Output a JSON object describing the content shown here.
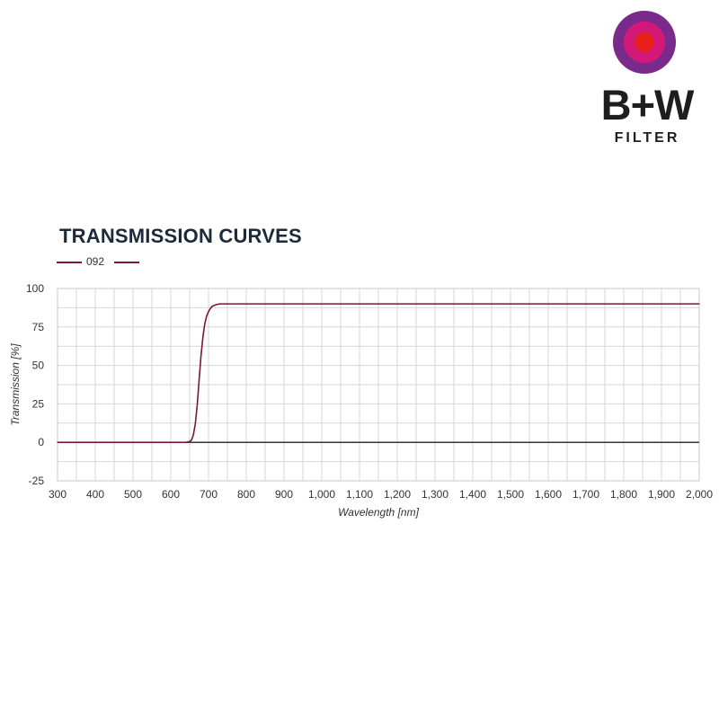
{
  "brand": {
    "name": "B+W",
    "subtitle": "FILTER",
    "colors": {
      "outer": "#7a2a8a",
      "middle": "#d4187a",
      "inner": "#e8221a"
    }
  },
  "chart_data": {
    "type": "line",
    "title": "TRANSMISSION CURVES",
    "xlabel": "Wavelength [nm]",
    "ylabel": "Transmission [%]",
    "xlim": [
      300,
      2000
    ],
    "ylim": [
      -25,
      100
    ],
    "x_ticks": [
      300,
      400,
      500,
      600,
      700,
      800,
      900,
      1000,
      1100,
      1200,
      1300,
      1400,
      1500,
      1600,
      1700,
      1800,
      1900,
      2000
    ],
    "x_tick_labels": [
      "300",
      "400",
      "500",
      "600",
      "700",
      "800",
      "900",
      "1,000",
      "1,100",
      "1,200",
      "1,300",
      "1,400",
      "1,500",
      "1,600",
      "1,700",
      "1,800",
      "1,900",
      "2,000"
    ],
    "y_ticks": [
      -25,
      0,
      25,
      50,
      75,
      100
    ],
    "y_tick_labels": [
      "-25",
      "0",
      "25",
      "50",
      "75",
      "100"
    ],
    "grid": true,
    "legend_position": "top-left",
    "series": [
      {
        "name": "092",
        "color": "#7a1a2c",
        "x": [
          300,
          400,
          500,
          600,
          640,
          650,
          655,
          660,
          665,
          670,
          675,
          680,
          685,
          690,
          695,
          700,
          705,
          710,
          720,
          730,
          740,
          750,
          760,
          800,
          900,
          1000,
          1100,
          1200,
          1300,
          1400,
          1500,
          1600,
          1700,
          1800,
          1900,
          2000
        ],
        "y": [
          0,
          0,
          0,
          0,
          0,
          0.5,
          1.5,
          5,
          12,
          24,
          40,
          56,
          68,
          77,
          82,
          85,
          87,
          88.5,
          89.5,
          90,
          90,
          90,
          90,
          90,
          90,
          90,
          90,
          90,
          90,
          90,
          90,
          90,
          90,
          90,
          90,
          90
        ]
      }
    ]
  }
}
